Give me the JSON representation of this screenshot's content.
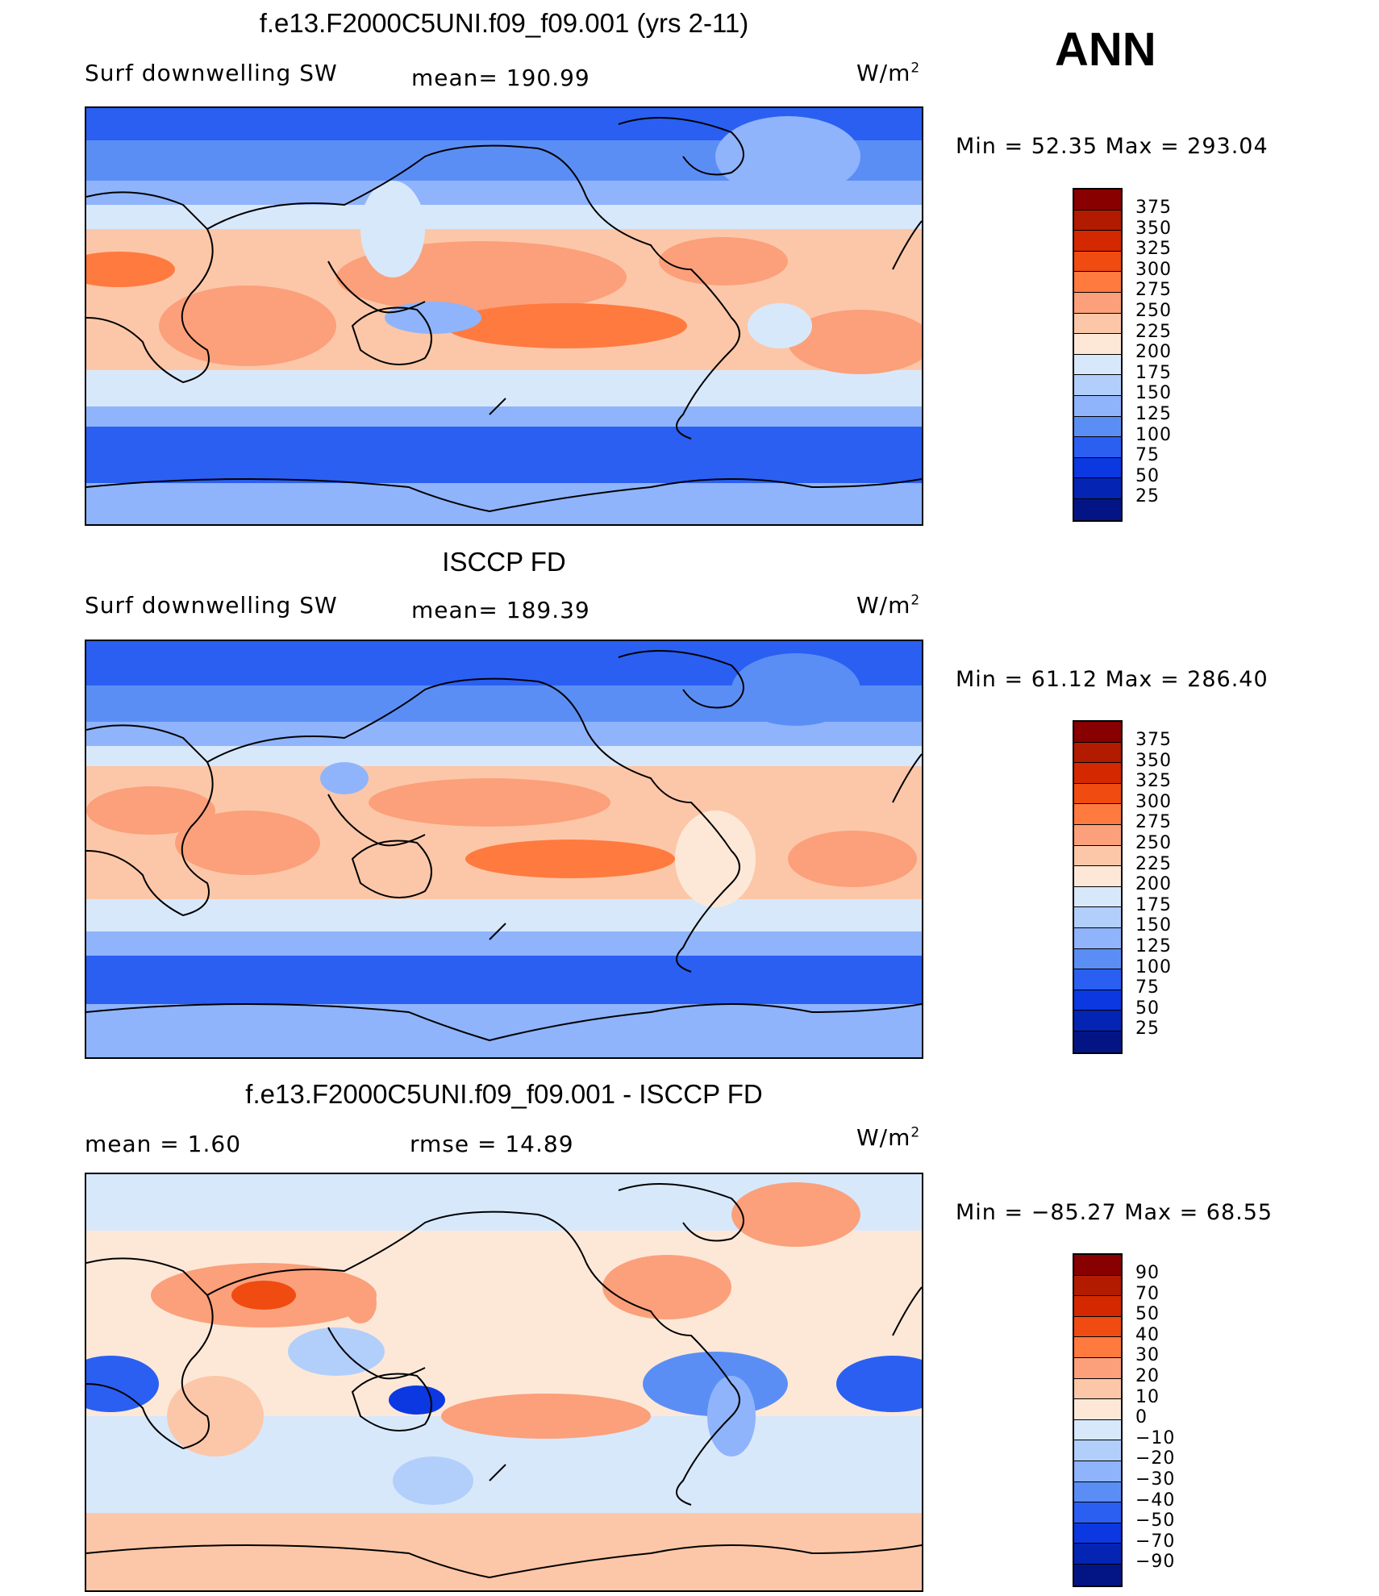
{
  "season": "ANN",
  "units_base": "W/m",
  "units_exp": "2",
  "panels": {
    "model": {
      "title": "f.e13.F2000C5UNI.f09_f09.001 (yrs 2-11)",
      "variable": "Surf  downwelling SW",
      "mean_label": "mean= 190.99",
      "minmax": "Min  =    52.35  Max  =  293.04"
    },
    "obs": {
      "title": "ISCCP FD",
      "variable": "Surf  downwelling SW",
      "mean_label": "mean= 189.39",
      "minmax": "Min  =    61.12  Max  =  286.40"
    },
    "diff": {
      "title": "f.e13.F2000C5UNI.f09_f09.001 - ISCCP FD",
      "mean_label": "mean  =      1.60",
      "rmse_label": "rmse  =     14.89",
      "minmax": "Min  = −85.27  Max  =    68.55"
    }
  },
  "chart_data": [
    {
      "type": "heatmap",
      "title": "f.e13.F2000C5UNI.f09_f09.001 (yrs 2-11)",
      "variable": "Surf downwelling SW",
      "units": "W/m2",
      "mean": 190.99,
      "min": 52.35,
      "max": 293.04,
      "projection": "cylindrical equidistant, centered on 180",
      "levels": [
        25,
        50,
        75,
        100,
        125,
        150,
        175,
        200,
        225,
        250,
        275,
        300,
        325,
        350,
        375
      ],
      "colorbar_labels": [
        "375",
        "350",
        "325",
        "300",
        "275",
        "250",
        "225",
        "200",
        "175",
        "150",
        "125",
        "100",
        "75",
        "50",
        "25"
      ],
      "colors": [
        "#880000",
        "#b21b00",
        "#d42800",
        "#f04b10",
        "#ff7a3f",
        "#fba07a",
        "#fcc7a8",
        "#fde8d8",
        "#d8e8fb",
        "#b2cffb",
        "#8fb4fb",
        "#5b8ef5",
        "#2a5ff2",
        "#0b38e0",
        "#0424b4",
        "#031585"
      ]
    },
    {
      "type": "heatmap",
      "title": "ISCCP FD",
      "variable": "Surf downwelling SW",
      "units": "W/m2",
      "mean": 189.39,
      "min": 61.12,
      "max": 286.4,
      "levels": [
        25,
        50,
        75,
        100,
        125,
        150,
        175,
        200,
        225,
        250,
        275,
        300,
        325,
        350,
        375
      ],
      "colorbar_labels": [
        "375",
        "350",
        "325",
        "300",
        "275",
        "250",
        "225",
        "200",
        "175",
        "150",
        "125",
        "100",
        "75",
        "50",
        "25"
      ],
      "colors": [
        "#880000",
        "#b21b00",
        "#d42800",
        "#f04b10",
        "#ff7a3f",
        "#fba07a",
        "#fcc7a8",
        "#fde8d8",
        "#d8e8fb",
        "#b2cffb",
        "#8fb4fb",
        "#5b8ef5",
        "#2a5ff2",
        "#0b38e0",
        "#0424b4",
        "#031585"
      ]
    },
    {
      "type": "heatmap",
      "title": "f.e13.F2000C5UNI.f09_f09.001 - ISCCP FD",
      "units": "W/m2",
      "mean": 1.6,
      "rmse": 14.89,
      "min": -85.27,
      "max": 68.55,
      "levels": [
        -90,
        -70,
        -50,
        -40,
        -30,
        -20,
        -10,
        0,
        10,
        20,
        30,
        40,
        50,
        70,
        90
      ],
      "colorbar_labels": [
        "90",
        "70",
        "50",
        "40",
        "30",
        "20",
        "10",
        "0",
        "−10",
        "−20",
        "−30",
        "−40",
        "−50",
        "−70",
        "−90"
      ],
      "colors": [
        "#880000",
        "#b21b00",
        "#d42800",
        "#f04b10",
        "#ff7a3f",
        "#fba07a",
        "#fcc7a8",
        "#fde8d8",
        "#d8e8fb",
        "#b2cffb",
        "#8fb4fb",
        "#5b8ef5",
        "#2a5ff2",
        "#0b38e0",
        "#0424b4",
        "#031585"
      ]
    }
  ]
}
